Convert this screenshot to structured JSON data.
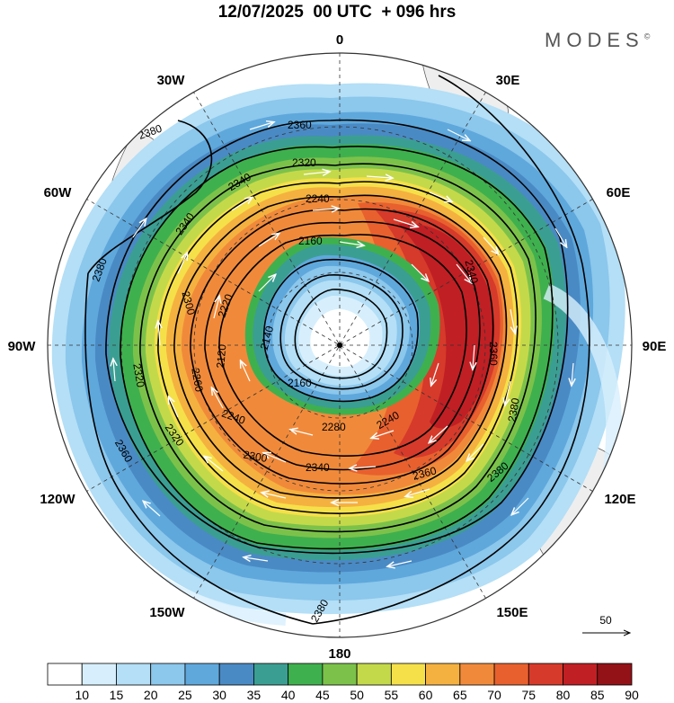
{
  "header": {
    "title": "12/07/2025  00 UTC  + 096 hrs",
    "brand": "MODES",
    "brand_mark": "©"
  },
  "map": {
    "projection": "polar stereographic (south pole)",
    "longitude_labels": [
      "0",
      "30E",
      "60E",
      "90E",
      "120E",
      "150E",
      "180",
      "150W",
      "120W",
      "90W",
      "60W",
      "30W"
    ],
    "contour_labels": [
      "2380",
      "2360",
      "2340",
      "2320",
      "2300",
      "2280",
      "2260",
      "2240",
      "2220",
      "2160",
      "2140",
      "2120"
    ],
    "vector_reference": "50"
  },
  "colorbar": {
    "ticks": [
      "10",
      "15",
      "20",
      "25",
      "30",
      "35",
      "40",
      "45",
      "50",
      "55",
      "60",
      "65",
      "70",
      "75",
      "80",
      "85",
      "90"
    ],
    "colors": [
      "#ffffff",
      "#d7effc",
      "#b4dff6",
      "#8cc7ec",
      "#5fa8dc",
      "#4a8ac4",
      "#3b9e92",
      "#3fb04e",
      "#7cc24a",
      "#c4d94a",
      "#f5e04a",
      "#f5b13f",
      "#f08a3a",
      "#e8602e",
      "#d63a2a",
      "#c01f24",
      "#921218"
    ]
  }
}
